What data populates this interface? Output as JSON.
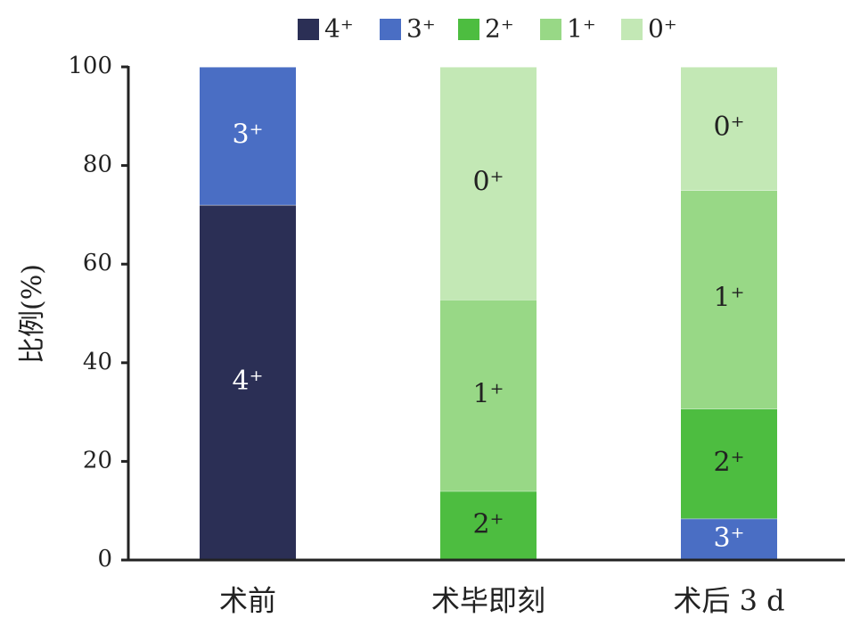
{
  "chart_data": {
    "type": "bar",
    "stacked": true,
    "ylabel": "比例(%)",
    "ylim": [
      0,
      100
    ],
    "yticks": [
      0,
      20,
      40,
      60,
      80,
      100
    ],
    "grid": false,
    "legend_position": "top",
    "categories": [
      "术前",
      "术毕即刻",
      "术后 3 d"
    ],
    "series": [
      {
        "name": "4⁺",
        "color": "#2b2f55",
        "label_color": "#ffffff",
        "values": [
          72,
          0,
          0
        ]
      },
      {
        "name": "3⁺",
        "color": "#4a6ec4",
        "label_color": "#ffffff",
        "values": [
          28,
          0,
          8.4
        ]
      },
      {
        "name": "2⁺",
        "color": "#4dbd40",
        "label_color": "#222222",
        "values": [
          0,
          14,
          22.3
        ]
      },
      {
        "name": "1⁺",
        "color": "#98d886",
        "label_color": "#222222",
        "values": [
          0,
          38.8,
          44.3
        ]
      },
      {
        "name": "0⁺",
        "color": "#c3e8b5",
        "label_color": "#222222",
        "values": [
          0,
          47.2,
          25
        ]
      }
    ]
  }
}
